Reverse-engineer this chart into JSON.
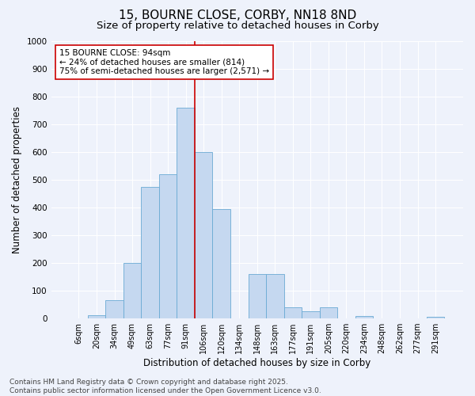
{
  "title_line1": "15, BOURNE CLOSE, CORBY, NN18 8ND",
  "title_line2": "Size of property relative to detached houses in Corby",
  "xlabel": "Distribution of detached houses by size in Corby",
  "ylabel": "Number of detached properties",
  "bar_color": "#c5d8f0",
  "bar_edge_color": "#6aaad4",
  "categories": [
    "6sqm",
    "20sqm",
    "34sqm",
    "49sqm",
    "63sqm",
    "77sqm",
    "91sqm",
    "106sqm",
    "120sqm",
    "134sqm",
    "148sqm",
    "163sqm",
    "177sqm",
    "191sqm",
    "205sqm",
    "220sqm",
    "234sqm",
    "248sqm",
    "262sqm",
    "277sqm",
    "291sqm"
  ],
  "values": [
    0,
    12,
    65,
    200,
    475,
    520,
    760,
    600,
    395,
    0,
    160,
    160,
    40,
    25,
    40,
    0,
    10,
    0,
    0,
    0,
    7
  ],
  "ylim": [
    0,
    1000
  ],
  "yticks": [
    0,
    100,
    200,
    300,
    400,
    500,
    600,
    700,
    800,
    900,
    1000
  ],
  "vline_color": "#cc0000",
  "annotation_title": "15 BOURNE CLOSE: 94sqm",
  "annotation_line1": "← 24% of detached houses are smaller (814)",
  "annotation_line2": "75% of semi-detached houses are larger (2,571) →",
  "annotation_box_color": "#ffffff",
  "annotation_box_edge": "#cc0000",
  "footer_line1": "Contains HM Land Registry data © Crown copyright and database right 2025.",
  "footer_line2": "Contains public sector information licensed under the Open Government Licence v3.0.",
  "bg_color": "#eef2fb",
  "grid_color": "#ffffff",
  "title_fontsize": 11,
  "subtitle_fontsize": 9.5,
  "tick_fontsize": 7,
  "ylabel_fontsize": 8.5,
  "xlabel_fontsize": 8.5,
  "footer_fontsize": 6.5,
  "annotation_fontsize": 7.5
}
